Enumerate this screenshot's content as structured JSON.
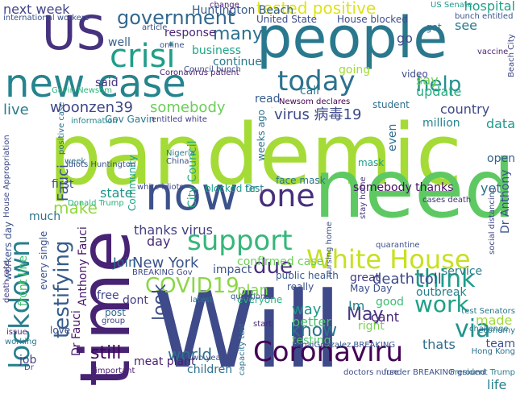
{
  "words": [
    {
      "text": "pandemic",
      "color": "#a5db36"
    },
    {
      "text": "Will",
      "color": "#3e4a89"
    },
    {
      "text": "people",
      "color": "#2a788e"
    },
    {
      "text": "US",
      "color": "#46327e"
    },
    {
      "text": "time",
      "color": "#482374"
    },
    {
      "text": "need",
      "color": "#5ec962"
    },
    {
      "text": "new case",
      "color": "#25848e"
    },
    {
      "text": "crisi",
      "color": "#1f9e89"
    },
    {
      "text": "today",
      "color": "#2c728e"
    },
    {
      "text": "now",
      "color": "#3b528b"
    },
    {
      "text": "lockdown",
      "color": "#277f8e"
    },
    {
      "text": "one",
      "color": "#472f7d"
    },
    {
      "text": "White House",
      "color": "#c8e020"
    },
    {
      "text": "support",
      "color": "#35b779"
    },
    {
      "text": "Coronaviru",
      "color": "#440154"
    },
    {
      "text": "government",
      "color": "#31688e"
    },
    {
      "text": "tested positive",
      "color": "#dde318"
    },
    {
      "text": "help",
      "color": "#21918c"
    },
    {
      "text": "testifying",
      "color": "#365c8d"
    },
    {
      "text": "COVID19",
      "color": "#8bd646"
    },
    {
      "text": "work",
      "color": "#1fa187"
    },
    {
      "text": "think",
      "color": "#1e9b8a"
    },
    {
      "text": "next week",
      "color": "#414487"
    },
    {
      "text": "woonzen39",
      "color": "#3f4788"
    },
    {
      "text": "somebody",
      "color": "#6ccd5a"
    },
    {
      "text": "many",
      "color": "#2d708e"
    },
    {
      "text": "via",
      "color": "#20938c"
    },
    {
      "text": "still",
      "color": "#450559"
    },
    {
      "text": "world",
      "color": "#2e6f8e"
    },
    {
      "text": "New York",
      "color": "#3a548c"
    },
    {
      "text": "due",
      "color": "#46307e"
    },
    {
      "text": "look",
      "color": "#3d4d8a"
    },
    {
      "text": "know",
      "color": "#2c738e"
    },
    {
      "text": "live",
      "color": "#287c8e"
    },
    {
      "text": "make",
      "color": "#93d741"
    },
    {
      "text": "May",
      "color": "#453781"
    },
    {
      "text": "say",
      "color": "#75d054"
    },
    {
      "text": "Fauci",
      "color": "#3b528b"
    },
    {
      "text": "Dr Fauci",
      "color": "#481769"
    },
    {
      "text": "death toll",
      "color": "#3e4989"
    },
    {
      "text": "virus",
      "color": "#2f6b8e"
    },
    {
      "text": "country",
      "color": "#3f4889"
    },
    {
      "text": "update",
      "color": "#27ad81"
    },
    {
      "text": "state",
      "color": "#1f968b"
    },
    {
      "text": "Huntington Beach",
      "color": "#365d8d"
    },
    {
      "text": "thanks virus",
      "color": "#433e85"
    },
    {
      "text": "confirmed case",
      "color": "#6ece58"
    },
    {
      "text": "somebody thanks",
      "color": "#471164"
    },
    {
      "text": "Gavin Newsom",
      "color": "#2fb47c"
    },
    {
      "text": "go",
      "color": "#3e4a89"
    },
    {
      "text": "face mask",
      "color": "#2a768e"
    },
    {
      "text": "data",
      "color": "#1f998a"
    },
    {
      "text": "open",
      "color": "#34618d"
    },
    {
      "text": "Dr Anthony",
      "color": "#3a548c"
    },
    {
      "text": "yet",
      "color": "#2c718e"
    },
    {
      "text": "even",
      "color": "#2e6e8e"
    },
    {
      "text": "way",
      "color": "#1f958b"
    },
    {
      "text": "better",
      "color": "#4ac16d"
    },
    {
      "text": "testing",
      "color": "#52c569"
    },
    {
      "text": "right",
      "color": "#7ad151"
    },
    {
      "text": "Im",
      "color": "#26828e"
    },
    {
      "text": "good",
      "color": "#3dbc74"
    },
    {
      "text": "cant",
      "color": "#482576"
    },
    {
      "text": "thats",
      "color": "#2f6c8e"
    },
    {
      "text": "service",
      "color": "#287d8e"
    },
    {
      "text": "day",
      "color": "#482878"
    },
    {
      "text": "impact",
      "color": "#3b518b"
    },
    {
      "text": "plan",
      "color": "#7fd34e"
    },
    {
      "text": "Join",
      "color": "#31678e"
    },
    {
      "text": "free",
      "color": "#3f4788"
    },
    {
      "text": "dont",
      "color": "#433d84"
    },
    {
      "text": "million",
      "color": "#26828e"
    },
    {
      "text": "said",
      "color": "#46337f"
    },
    {
      "text": "well",
      "color": "#35608d"
    },
    {
      "text": "Gov Gavin",
      "color": "#2a778e"
    },
    {
      "text": "entitled white",
      "color": "#414287"
    },
    {
      "text": "City Council",
      "color": "#25ab82"
    },
    {
      "text": "everyone",
      "color": "#2ab07f"
    },
    {
      "text": "public health",
      "color": "#38598c"
    },
    {
      "text": "outbreak",
      "color": "#277e8e"
    },
    {
      "text": "test",
      "color": "#2a788e"
    },
    {
      "text": "made",
      "color": "#a0da39"
    },
    {
      "text": "team",
      "color": "#3d4e8a"
    },
    {
      "text": "life",
      "color": "#27808e"
    },
    {
      "text": "really",
      "color": "#3b528b"
    },
    {
      "text": "May Day",
      "color": "#3c4f8a"
    },
    {
      "text": "great",
      "color": "#443a83"
    },
    {
      "text": "meat plant",
      "color": "#482071"
    },
    {
      "text": "children",
      "color": "#2d718e"
    },
    {
      "text": "Anthony Fauci",
      "color": "#48186a"
    },
    {
      "text": "much",
      "color": "#2c728e"
    },
    {
      "text": "first",
      "color": "#3b528b"
    },
    {
      "text": "every single",
      "color": "#3a538b"
    },
    {
      "text": "white idiots",
      "color": "#3f4788"
    },
    {
      "text": "blocked Dr",
      "color": "#1e9c89"
    },
    {
      "text": "response",
      "color": "#482677"
    },
    {
      "text": "article",
      "color": "#3b518b"
    },
    {
      "text": "going",
      "color": "#a2da37"
    },
    {
      "text": "video",
      "color": "#3e4a89"
    },
    {
      "text": "read",
      "color": "#365c8d"
    },
    {
      "text": "call",
      "color": "#2a788e"
    },
    {
      "text": "hospital",
      "color": "#1fa088"
    },
    {
      "text": "see",
      "color": "#297b8e"
    },
    {
      "text": "got",
      "color": "#2b748e"
    },
    {
      "text": "business",
      "color": "#20a386"
    },
    {
      "text": "continue",
      "color": "#297a8e"
    },
    {
      "text": "Council bunch",
      "color": "#3e4a89"
    },
    {
      "text": "online",
      "color": "#3b528b"
    },
    {
      "text": "Newsom declares",
      "color": "#440154"
    },
    {
      "text": "student",
      "color": "#2e6e8e"
    },
    {
      "text": "United State",
      "color": "#3e4c8a"
    },
    {
      "text": "House blocked",
      "color": "#3d4d8a"
    },
    {
      "text": "bunch entitled",
      "color": "#3a538b"
    },
    {
      "text": "US Senate",
      "color": "#1e9b8a"
    },
    {
      "text": "front line",
      "color": "#43bf71"
    },
    {
      "text": "workers day",
      "color": "#3b518b"
    },
    {
      "text": "nursing home",
      "color": "#3c4f8a"
    },
    {
      "text": "stay home",
      "color": "#46337f"
    },
    {
      "text": "social distancing",
      "color": "#3f4788"
    },
    {
      "text": "Hong Kong",
      "color": "#2c718e"
    },
    {
      "text": "President Trump",
      "color": "#297b8e"
    },
    {
      "text": "economy",
      "color": "#2a788e"
    },
    {
      "text": "mask",
      "color": "#1e9c89"
    },
    {
      "text": "change",
      "color": "#482173"
    },
    {
      "text": "international workers",
      "color": "#3b528b"
    },
    {
      "text": "KenaiGonzalez BREAKING",
      "color": "#39568c"
    },
    {
      "text": "BREAKING Gov",
      "color": "#3f4889"
    },
    {
      "text": "Donald Trump",
      "color": "#2ab07f"
    },
    {
      "text": "cases death",
      "color": "#472d7b"
    },
    {
      "text": "positive case",
      "color": "#2e6e8e"
    },
    {
      "text": "information",
      "color": "#25858e"
    },
    {
      "text": "House Appropriation",
      "color": "#3e4a89"
    },
    {
      "text": "death rate",
      "color": "#433e85"
    },
    {
      "text": "issue",
      "color": "#482475"
    },
    {
      "text": "working",
      "color": "#2a788e"
    },
    {
      "text": "important",
      "color": "#482071"
    },
    {
      "text": "two year",
      "color": "#3b528b"
    },
    {
      "text": "latest",
      "color": "#2a788e"
    },
    {
      "text": "question",
      "color": "#3a548c"
    },
    {
      "text": "post",
      "color": "#2f6b8e"
    },
    {
      "text": "love",
      "color": "#3e4a89"
    },
    {
      "text": "group",
      "color": "#433d84"
    },
    {
      "text": "start",
      "color": "#472a7a"
    },
    {
      "text": "capacity test",
      "color": "#2c728e"
    },
    {
      "text": "funder BREAKING ground",
      "color": "#3b528b"
    },
    {
      "text": "doctors nurse",
      "color": "#3e4a89"
    },
    {
      "text": "challenge",
      "color": "#2a788e"
    },
    {
      "text": "quarantine",
      "color": "#3b528b"
    },
    {
      "text": "vaccine",
      "color": "#482576"
    },
    {
      "text": "Nigeria",
      "color": "#2a788e"
    },
    {
      "text": "China",
      "color": "#3b528b"
    },
    {
      "text": "Community",
      "color": "#1fa187"
    },
    {
      "text": "job",
      "color": "#433e85"
    },
    {
      "text": "Dr",
      "color": "#3b528b"
    },
    {
      "text": "week",
      "color": "#2a788e"
    },
    {
      "text": "virus 病毒19",
      "color": "#3e4a89"
    },
    {
      "text": "weeks ago",
      "color": "#2c718e"
    },
    {
      "text": "idiots Huntington",
      "color": "#3b528b"
    },
    {
      "text": "Coronavirus patient",
      "color": "#482374"
    },
    {
      "text": "test Senators",
      "color": "#2a788e"
    },
    {
      "text": "Beach City",
      "color": "#3e4a89"
    }
  ]
}
